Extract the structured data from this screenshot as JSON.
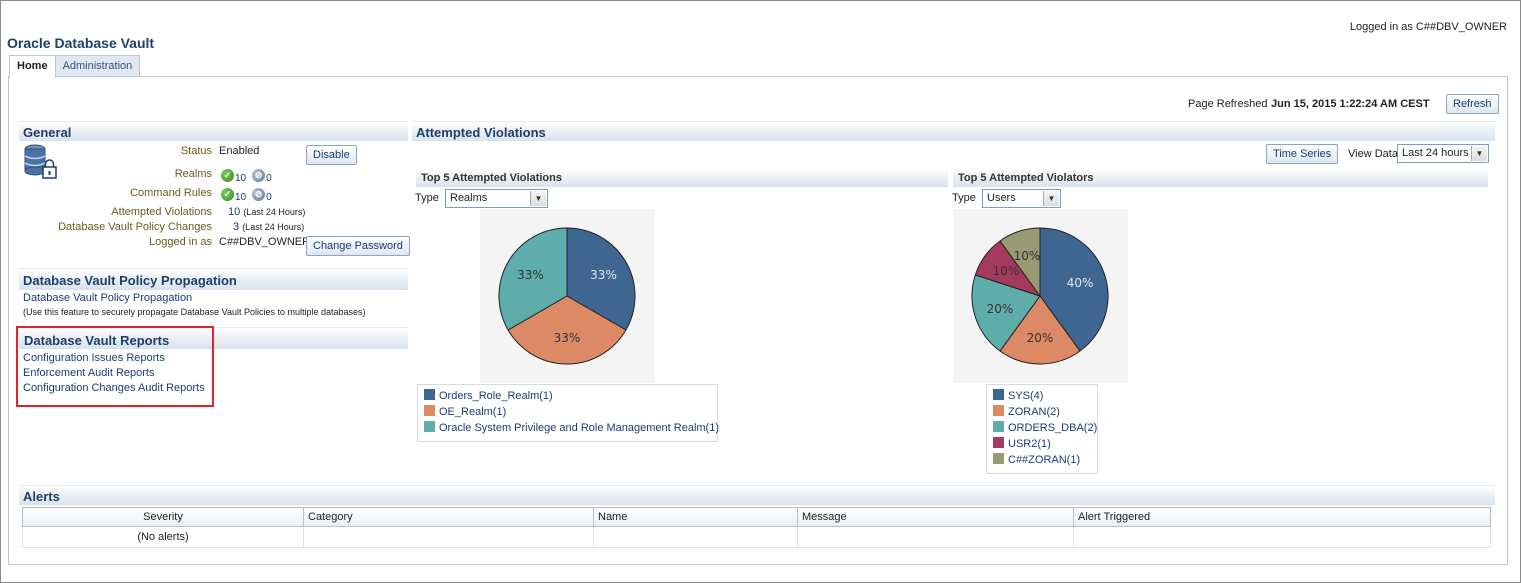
{
  "app": {
    "title": "Oracle Database Vault",
    "logged_in": "Logged in as C##DBV_OWNER"
  },
  "tabs": [
    {
      "label": "Home",
      "active": true
    },
    {
      "label": "Administration",
      "active": false
    }
  ],
  "refresh": {
    "label": "Page Refreshed",
    "timestamp": "Jun 15, 2015 1:22:24 AM CEST",
    "button": "Refresh"
  },
  "general": {
    "title": "General",
    "icon": "database-lock-icon",
    "status_label": "Status",
    "status_value": "Enabled",
    "disable_button": "Disable",
    "realms_label": "Realms",
    "realms_enabled": "10",
    "realms_disabled": "0",
    "command_rules_label": "Command Rules",
    "command_rules_enabled": "10",
    "command_rules_disabled": "0",
    "attempted_violations_label": "Attempted Violations",
    "attempted_violations_value": "10",
    "attempted_violations_note": "(Last 24 Hours)",
    "policy_changes_label": "Database Vault Policy Changes",
    "policy_changes_value": "3",
    "policy_changes_note": "(Last 24 Hours)",
    "logged_in_label": "Logged in as",
    "logged_in_value": "C##DBV_OWNER",
    "change_password_button": "Change Password"
  },
  "propagation": {
    "title": "Database Vault Policy Propagation",
    "link": "Database Vault Policy Propagation",
    "note": "(Use this feature to securely propagate Database Vault Policies to multiple databases)"
  },
  "reports": {
    "title": "Database Vault Reports",
    "links": [
      "Configuration Issues Reports",
      "Enforcement Audit Reports",
      "Configuration Changes Audit Reports"
    ]
  },
  "violations": {
    "title": "Attempted Violations",
    "time_series_button": "Time Series",
    "view_data_label": "View Data",
    "view_data_value": "Last 24 hours",
    "type_label": "Type"
  },
  "colors": {
    "slate_blue": "#3f6591",
    "salmon": "#dc8a66",
    "teal": "#5fadaa",
    "crimson": "#a43a5e",
    "olive": "#989a74",
    "highlight_red": "#e0232c"
  },
  "chart_data": [
    {
      "type": "pie",
      "title": "Top 5 Attempted Violations",
      "type_select": "Realms",
      "slices": [
        {
          "label": "Orders_Role_Realm(1)",
          "value": 33,
          "display": "33%",
          "color": "#3f6591"
        },
        {
          "label": "OE_Realm(1)",
          "value": 33,
          "display": "33%",
          "color": "#dc8a66"
        },
        {
          "label": "Oracle System Privilege and Role Management Realm(1)",
          "value": 33,
          "display": "33%",
          "color": "#5fadaa"
        }
      ]
    },
    {
      "type": "pie",
      "title": "Top 5 Attempted Violators",
      "type_select": "Users",
      "slices": [
        {
          "label": "SYS(4)",
          "value": 40,
          "display": "40%",
          "color": "#3f6591"
        },
        {
          "label": "ZORAN(2)",
          "value": 20,
          "display": "20%",
          "color": "#dc8a66"
        },
        {
          "label": "ORDERS_DBA(2)",
          "value": 20,
          "display": "20%",
          "color": "#5fadaa"
        },
        {
          "label": "USR2(1)",
          "value": 10,
          "display": "10%",
          "color": "#a43a5e"
        },
        {
          "label": "C##ZORAN(1)",
          "value": 10,
          "display": "10%",
          "color": "#989a74"
        }
      ]
    }
  ],
  "alerts": {
    "title": "Alerts",
    "columns": [
      "Severity",
      "Category",
      "Name",
      "Message",
      "Alert Triggered"
    ],
    "empty_text": "(No alerts)"
  }
}
